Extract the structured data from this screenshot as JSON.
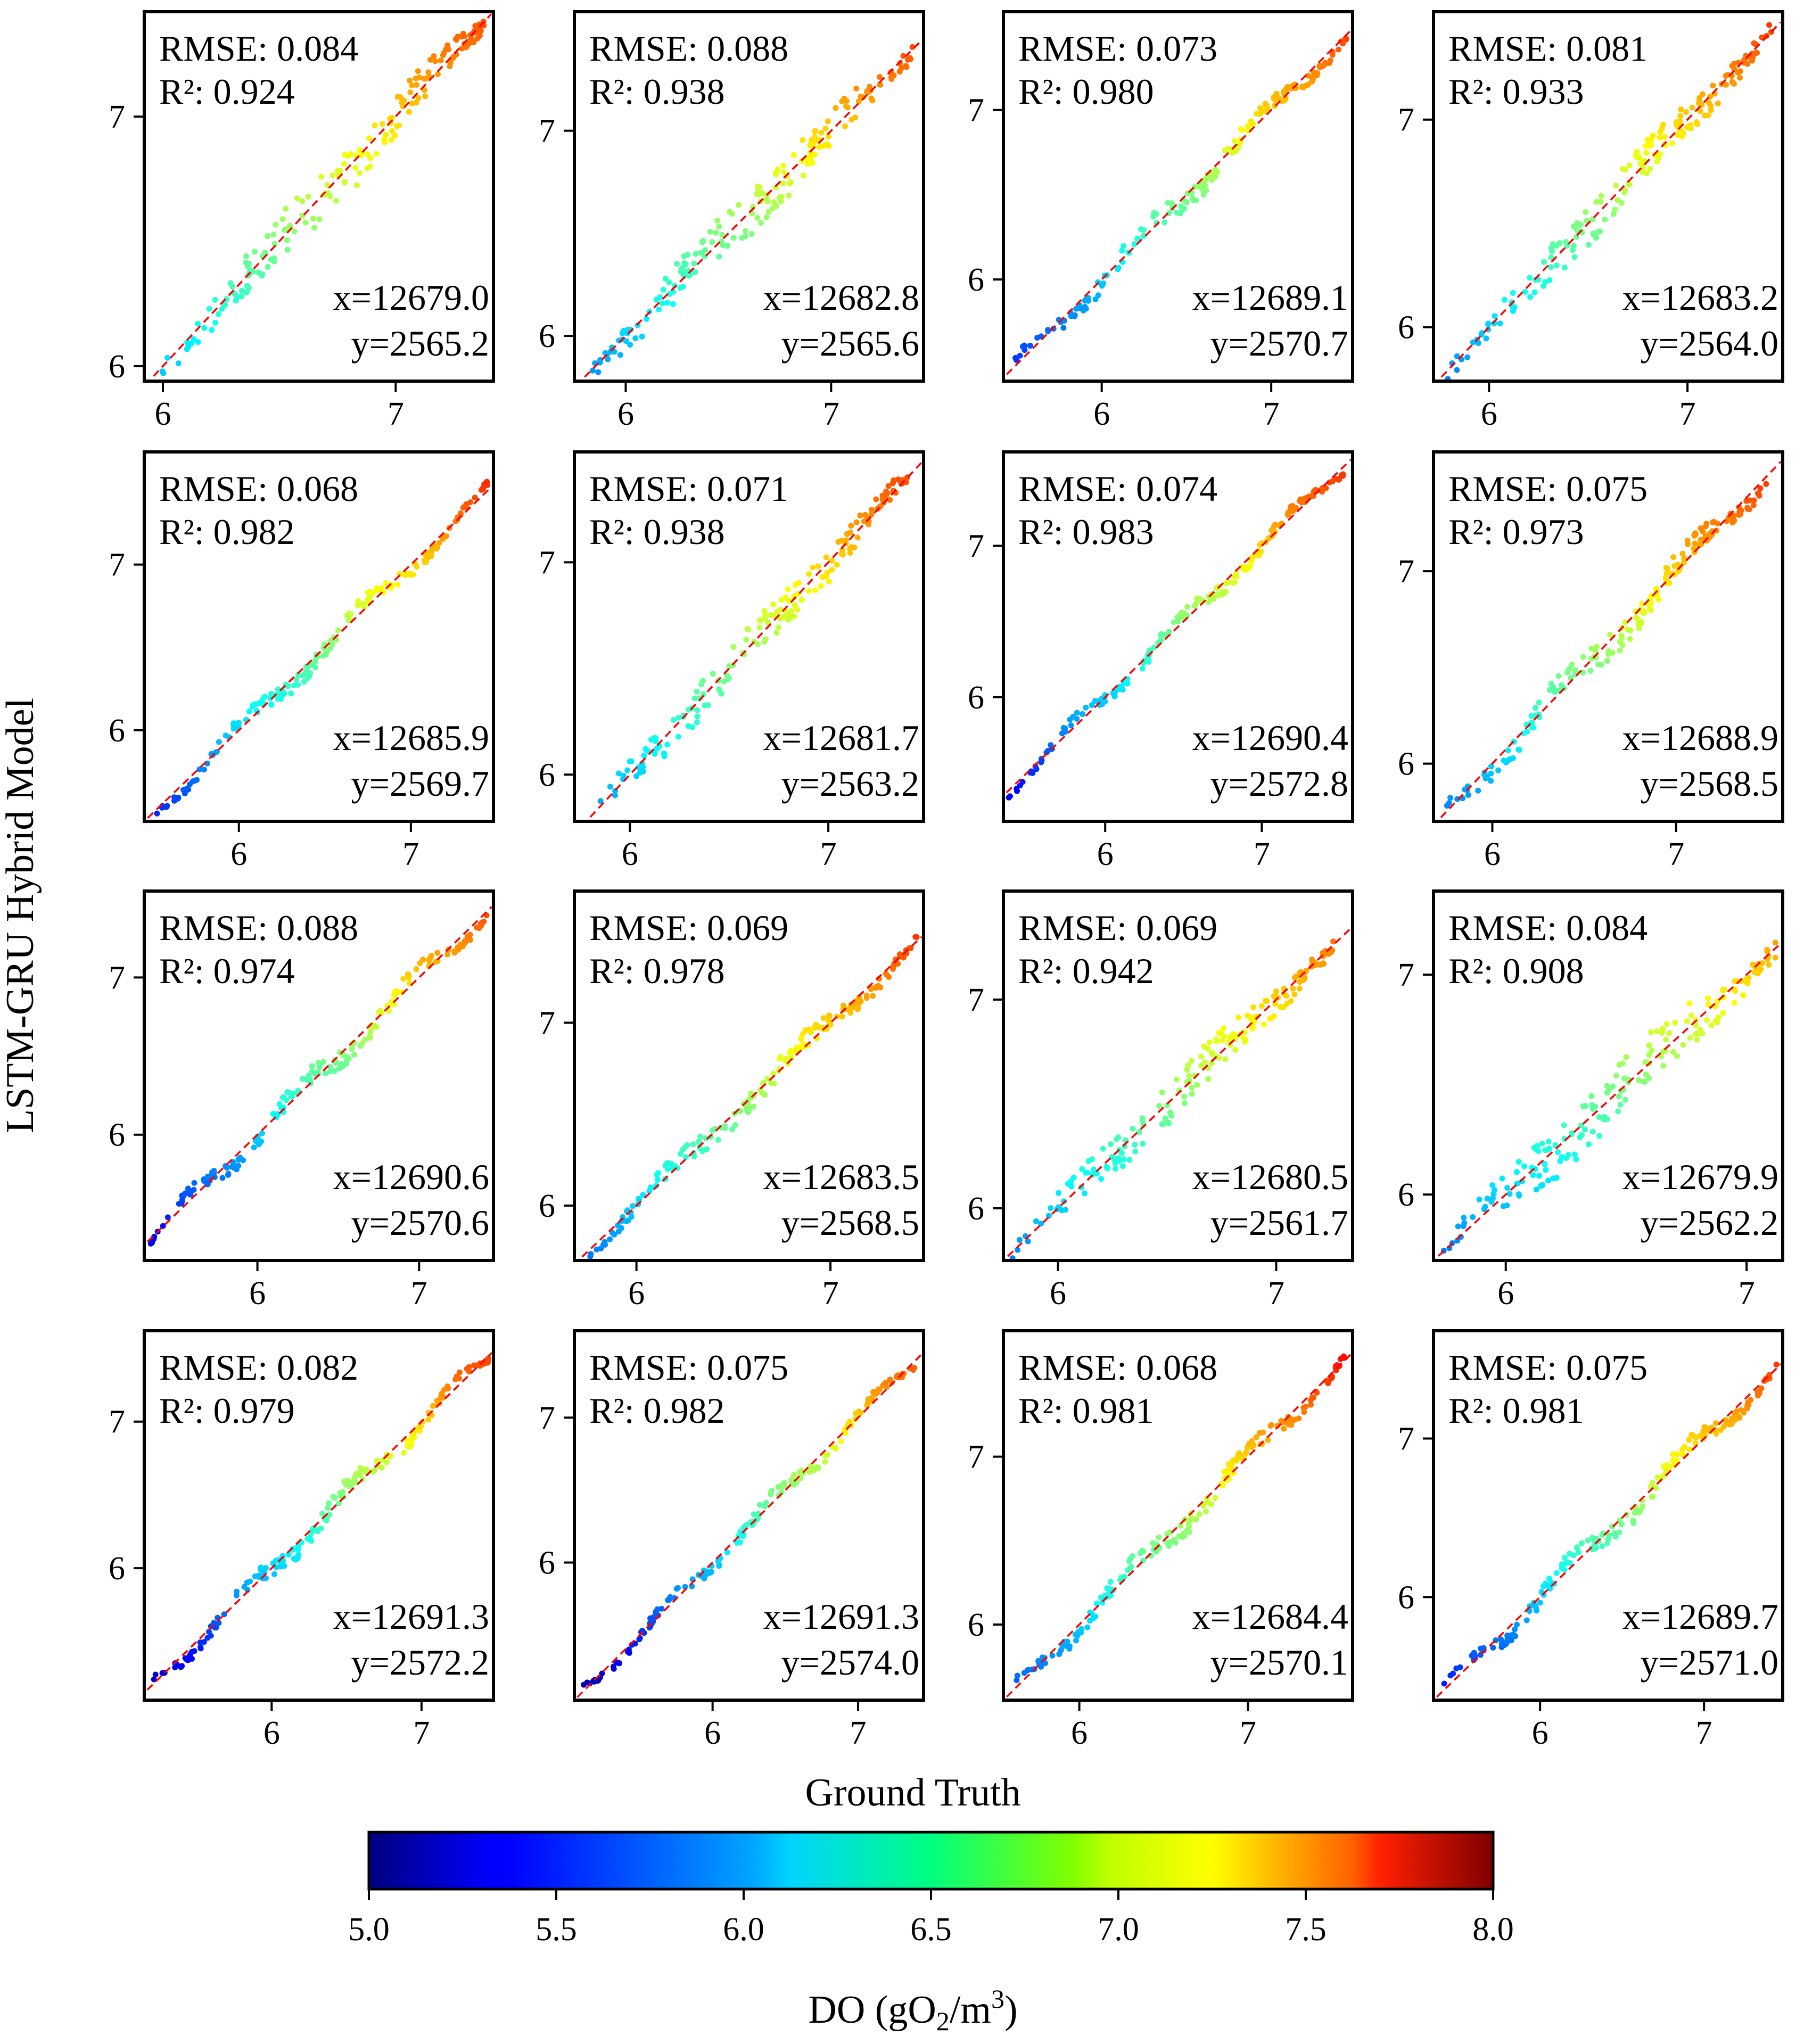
{
  "figure": {
    "ylabel": "LSTM-GRU Hybrid Model",
    "xlabel": "Ground Truth"
  },
  "colorbar": {
    "label_prefix": "DO (gO",
    "label_sub": "2",
    "label_mid": "/m",
    "label_sup": "3",
    "label_suffix": ")",
    "cmap": "jet",
    "range": [
      5.0,
      8.0
    ],
    "ticks": [
      "5.0",
      "5.5",
      "6.0",
      "6.5",
      "7.0",
      "7.5",
      "8.0"
    ]
  },
  "chart_data": [
    {
      "type": "scatter",
      "title": "",
      "rmse": "RMSE: 0.084",
      "r2": "R²: 0.924",
      "xpos": "x=12679.0",
      "ypos": "y=2565.2",
      "xlim": [
        5.92,
        7.42
      ],
      "ylim": [
        5.94,
        7.42
      ],
      "xticks": [
        6,
        7
      ],
      "yticks": [
        6,
        7
      ],
      "range": [
        5.98,
        7.38
      ],
      "noise": 0.07,
      "wiggle": 0.02
    },
    {
      "type": "scatter",
      "title": "",
      "rmse": "RMSE: 0.088",
      "r2": "R²: 0.938",
      "xpos": "x=12682.8",
      "ypos": "y=2565.6",
      "xlim": [
        5.75,
        7.45
      ],
      "ylim": [
        5.78,
        7.58
      ],
      "xticks": [
        6,
        7
      ],
      "yticks": [
        6,
        7
      ],
      "range": [
        5.82,
        7.4
      ],
      "noise": 0.08,
      "wiggle": 0.02
    },
    {
      "type": "scatter",
      "title": "",
      "rmse": "RMSE: 0.073",
      "r2": "R²: 0.980",
      "xpos": "x=12689.1",
      "ypos": "y=2570.7",
      "xlim": [
        5.42,
        7.48
      ],
      "ylim": [
        5.4,
        7.58
      ],
      "xticks": [
        6,
        7
      ],
      "yticks": [
        6,
        7
      ],
      "range": [
        5.45,
        7.45
      ],
      "noise": 0.04,
      "wiggle": 0.05
    },
    {
      "type": "scatter",
      "title": "",
      "rmse": "RMSE: 0.081",
      "r2": "R²: 0.933",
      "xpos": "x=12683.2",
      "ypos": "y=2564.0",
      "xlim": [
        5.72,
        7.48
      ],
      "ylim": [
        5.74,
        7.52
      ],
      "xticks": [
        6,
        7
      ],
      "yticks": [
        6,
        7
      ],
      "range": [
        5.78,
        7.43
      ],
      "noise": 0.07,
      "wiggle": 0.02
    },
    {
      "type": "scatter",
      "title": "",
      "rmse": "RMSE: 0.068",
      "r2": "R²: 0.982",
      "xpos": "x=12685.9",
      "ypos": "y=2569.7",
      "xlim": [
        5.45,
        7.48
      ],
      "ylim": [
        5.45,
        7.68
      ],
      "xticks": [
        6,
        7
      ],
      "yticks": [
        6,
        7
      ],
      "range": [
        5.5,
        7.45
      ],
      "noise": 0.03,
      "wiggle": 0.05
    },
    {
      "type": "scatter",
      "title": "",
      "rmse": "RMSE: 0.071",
      "r2": "R²: 0.938",
      "xpos": "x=12681.7",
      "ypos": "y=2563.2",
      "xlim": [
        5.72,
        7.48
      ],
      "ylim": [
        5.78,
        7.52
      ],
      "xticks": [
        6,
        7
      ],
      "yticks": [
        6,
        7
      ],
      "range": [
        5.82,
        7.4
      ],
      "noise": 0.07,
      "wiggle": 0.02
    },
    {
      "type": "scatter",
      "title": "",
      "rmse": "RMSE: 0.074",
      "r2": "R²: 0.983",
      "xpos": "x=12690.4",
      "ypos": "y=2572.8",
      "xlim": [
        5.35,
        7.58
      ],
      "ylim": [
        5.18,
        7.62
      ],
      "xticks": [
        6,
        7
      ],
      "yticks": [
        6,
        7
      ],
      "range": [
        5.38,
        7.52
      ],
      "noise": 0.03,
      "wiggle": 0.05
    },
    {
      "type": "scatter",
      "title": "",
      "rmse": "RMSE: 0.075",
      "r2": "R²: 0.973",
      "xpos": "x=12688.9",
      "ypos": "y=2568.5",
      "xlim": [
        5.68,
        7.58
      ],
      "ylim": [
        5.7,
        7.62
      ],
      "xticks": [
        6,
        7
      ],
      "yticks": [
        6,
        7
      ],
      "range": [
        5.75,
        7.5
      ],
      "noise": 0.05,
      "wiggle": 0.05
    },
    {
      "type": "scatter",
      "title": "",
      "rmse": "RMSE: 0.088",
      "r2": "R²: 0.974",
      "xpos": "x=12690.6",
      "ypos": "y=2570.6",
      "xlim": [
        5.3,
        7.46
      ],
      "ylim": [
        5.2,
        7.55
      ],
      "xticks": [
        6,
        7
      ],
      "yticks": [
        6,
        7
      ],
      "range": [
        5.33,
        7.42
      ],
      "noise": 0.04,
      "wiggle": 0.06
    },
    {
      "type": "scatter",
      "title": "",
      "rmse": "RMSE: 0.069",
      "r2": "R²: 0.978",
      "xpos": "x=12683.5",
      "ypos": "y=2568.5",
      "xlim": [
        5.68,
        7.48
      ],
      "ylim": [
        5.7,
        7.72
      ],
      "xticks": [
        6,
        7
      ],
      "yticks": [
        6,
        7
      ],
      "range": [
        5.73,
        7.45
      ],
      "noise": 0.04,
      "wiggle": 0.04
    },
    {
      "type": "scatter",
      "title": "",
      "rmse": "RMSE: 0.069",
      "r2": "R²: 0.942",
      "xpos": "x=12680.5",
      "ypos": "y=2561.7",
      "xlim": [
        5.75,
        7.35
      ],
      "ylim": [
        5.75,
        7.52
      ],
      "xticks": [
        6,
        7
      ],
      "yticks": [
        6,
        7
      ],
      "range": [
        5.78,
        7.28
      ],
      "noise": 0.07,
      "wiggle": 0.02
    },
    {
      "type": "scatter",
      "title": "",
      "rmse": "RMSE: 0.084",
      "r2": "R²: 0.908",
      "xpos": "x=12679.9",
      "ypos": "y=2562.2",
      "xlim": [
        5.7,
        7.15
      ],
      "ylim": [
        5.7,
        7.38
      ],
      "xticks": [
        6,
        7
      ],
      "yticks": [
        6,
        7
      ],
      "range": [
        5.74,
        7.12
      ],
      "noise": 0.09,
      "wiggle": 0.03
    },
    {
      "type": "scatter",
      "title": "",
      "rmse": "RMSE: 0.082",
      "r2": "R²: 0.979",
      "xpos": "x=12691.3",
      "ypos": "y=2572.2",
      "xlim": [
        5.15,
        7.48
      ],
      "ylim": [
        5.1,
        7.62
      ],
      "xticks": [
        6,
        7
      ],
      "yticks": [
        6,
        7
      ],
      "range": [
        5.2,
        7.45
      ],
      "noise": 0.04,
      "wiggle": 0.06
    },
    {
      "type": "scatter",
      "title": "",
      "rmse": "RMSE: 0.075",
      "r2": "R²: 0.982",
      "xpos": "x=12691.3",
      "ypos": "y=2574.0",
      "xlim": [
        5.05,
        7.45
      ],
      "ylim": [
        5.05,
        7.6
      ],
      "xticks": [
        6,
        7
      ],
      "yticks": [
        6,
        7
      ],
      "range": [
        5.1,
        7.42
      ],
      "noise": 0.03,
      "wiggle": 0.05
    },
    {
      "type": "scatter",
      "title": "",
      "rmse": "RMSE: 0.068",
      "r2": "R²: 0.981",
      "xpos": "x=12684.4",
      "ypos": "y=2570.1",
      "xlim": [
        5.55,
        7.62
      ],
      "ylim": [
        5.55,
        7.75
      ],
      "xticks": [
        6,
        7
      ],
      "yticks": [
        6,
        7
      ],
      "range": [
        5.62,
        7.6
      ],
      "noise": 0.04,
      "wiggle": 0.05
    },
    {
      "type": "scatter",
      "title": "",
      "rmse": "RMSE: 0.075",
      "r2": "R²: 0.981",
      "xpos": "x=12689.7",
      "ypos": "y=2571.0",
      "xlim": [
        5.35,
        7.48
      ],
      "ylim": [
        5.35,
        7.68
      ],
      "xticks": [
        6,
        7
      ],
      "yticks": [
        6,
        7
      ],
      "range": [
        5.4,
        7.45
      ],
      "noise": 0.04,
      "wiggle": 0.06
    }
  ]
}
